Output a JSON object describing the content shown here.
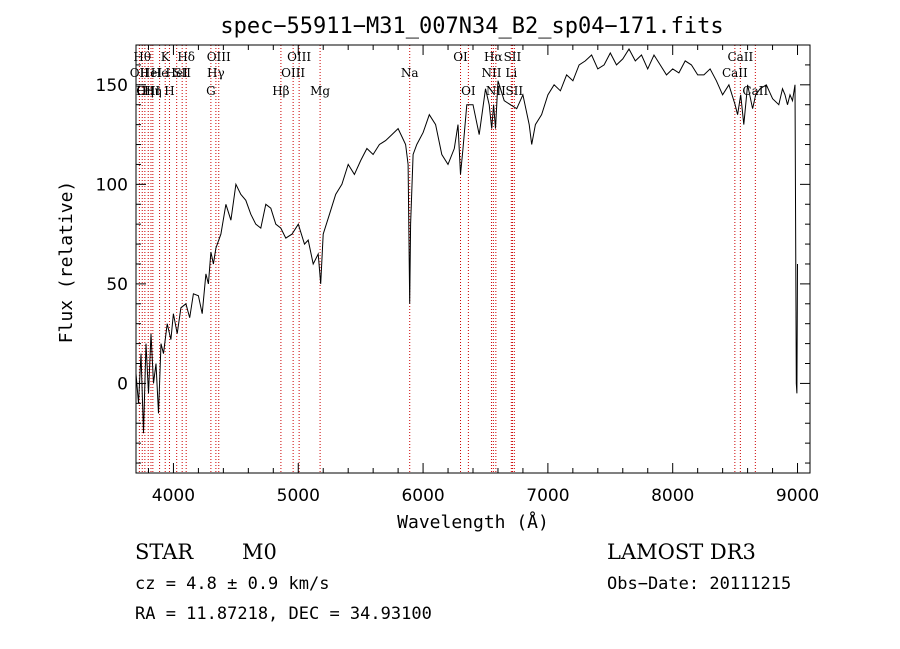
{
  "chart_data": {
    "type": "line",
    "title": "spec−55911−M31_007N34_B2_sp04−171.fits",
    "xlabel": "Wavelength (Å)",
    "ylabel": "Flux (relative)",
    "xlim": [
      3700,
      9100
    ],
    "ylim": [
      -45,
      170
    ],
    "xticks": [
      4000,
      5000,
      6000,
      7000,
      8000,
      9000
    ],
    "yticks": [
      0,
      50,
      100,
      150
    ],
    "grid": false,
    "series": [
      {
        "x": [
          3700,
          3720,
          3740,
          3760,
          3780,
          3800,
          3820,
          3840,
          3860,
          3880,
          3900,
          3920,
          3950,
          3980,
          4000,
          4030,
          4060,
          4100,
          4130,
          4160,
          4200,
          4230,
          4260,
          4280,
          4300,
          4320,
          4340,
          4380,
          4420,
          4460,
          4500,
          4540,
          4580,
          4620,
          4660,
          4700,
          4740,
          4780,
          4820,
          4860,
          4900,
          4950,
          5000,
          5050,
          5080,
          5120,
          5160,
          5180,
          5200,
          5250,
          5300,
          5350,
          5400,
          5450,
          5500,
          5550,
          5600,
          5650,
          5700,
          5750,
          5800,
          5830,
          5860,
          5880,
          5893,
          5900,
          5920,
          5950,
          6000,
          6050,
          6100,
          6150,
          6200,
          6250,
          6280,
          6300,
          6320,
          6350,
          6400,
          6450,
          6500,
          6530,
          6550,
          6565,
          6580,
          6600,
          6650,
          6700,
          6750,
          6800,
          6850,
          6870,
          6900,
          6950,
          7000,
          7050,
          7100,
          7150,
          7200,
          7250,
          7300,
          7350,
          7400,
          7450,
          7500,
          7550,
          7600,
          7650,
          7700,
          7750,
          7800,
          7850,
          7900,
          7950,
          8000,
          8050,
          8100,
          8150,
          8200,
          8250,
          8300,
          8350,
          8400,
          8450,
          8500,
          8520,
          8545,
          8570,
          8600,
          8640,
          8665,
          8700,
          8750,
          8800,
          8850,
          8880,
          8900,
          8920,
          8940,
          8960,
          8980,
          8990,
          8995,
          9000
        ],
        "values": [
          5,
          -10,
          15,
          -25,
          20,
          -5,
          25,
          0,
          10,
          -15,
          20,
          15,
          30,
          22,
          35,
          25,
          38,
          40,
          33,
          45,
          44,
          35,
          55,
          50,
          66,
          60,
          68,
          75,
          90,
          82,
          100,
          95,
          92,
          85,
          80,
          78,
          90,
          88,
          80,
          78,
          73,
          75,
          80,
          70,
          72,
          60,
          65,
          50,
          75,
          85,
          95,
          100,
          110,
          105,
          112,
          118,
          115,
          120,
          122,
          125,
          128,
          124,
          120,
          110,
          40,
          80,
          115,
          120,
          126,
          135,
          130,
          115,
          110,
          118,
          130,
          105,
          118,
          140,
          140,
          125,
          148,
          140,
          128,
          140,
          128,
          152,
          142,
          140,
          138,
          145,
          130,
          120,
          130,
          135,
          145,
          150,
          147,
          155,
          152,
          160,
          162,
          165,
          158,
          160,
          166,
          160,
          163,
          168,
          162,
          165,
          158,
          165,
          160,
          155,
          158,
          156,
          162,
          160,
          155,
          155,
          158,
          152,
          145,
          150,
          140,
          135,
          145,
          130,
          150,
          138,
          145,
          148,
          150,
          143,
          140,
          148,
          145,
          140,
          145,
          142,
          150,
          0,
          -5,
          60
        ]
      }
    ],
    "line_markers": [
      {
        "w": 3727,
        "label": "OII",
        "row": 2
      },
      {
        "w": 3750,
        "label": "Hθ",
        "row": 1
      },
      {
        "w": 3771,
        "label": "Hη",
        "row": 3
      },
      {
        "w": 3798,
        "label": "OIII",
        "row": 3
      },
      {
        "w": 3820,
        "label": "HeI",
        "row": 2
      },
      {
        "w": 3835,
        "label": "Hη",
        "row": 3
      },
      {
        "w": 3889,
        "label": "He",
        "row": 2
      },
      {
        "w": 3934,
        "label": "K",
        "row": 1
      },
      {
        "w": 3968,
        "label": "H",
        "row": 3
      },
      {
        "w": 4026,
        "label": "HeI",
        "row": 2
      },
      {
        "w": 4070,
        "label": "SII",
        "row": 2
      },
      {
        "w": 4102,
        "label": "Hδ",
        "row": 1
      },
      {
        "w": 4300,
        "label": "G",
        "row": 3
      },
      {
        "w": 4340,
        "label": "Hγ",
        "row": 2
      },
      {
        "w": 4363,
        "label": "OIII",
        "row": 1
      },
      {
        "w": 4861,
        "label": "Hβ",
        "row": 3
      },
      {
        "w": 4959,
        "label": "OIII",
        "row": 2
      },
      {
        "w": 5007,
        "label": "OIII",
        "row": 1
      },
      {
        "w": 5175,
        "label": "Mg",
        "row": 3
      },
      {
        "w": 5893,
        "label": "Na",
        "row": 2
      },
      {
        "w": 6300,
        "label": "OI",
        "row": 1
      },
      {
        "w": 6363,
        "label": "OI",
        "row": 3
      },
      {
        "w": 6548,
        "label": "NII",
        "row": 2
      },
      {
        "w": 6563,
        "label": "Hα",
        "row": 1
      },
      {
        "w": 6583,
        "label": "NII",
        "row": 3
      },
      {
        "w": 6707,
        "label": "Li",
        "row": 2
      },
      {
        "w": 6716,
        "label": "SII",
        "row": 1
      },
      {
        "w": 6731,
        "label": "SII",
        "row": 3
      },
      {
        "w": 8498,
        "label": "CaII",
        "row": 2
      },
      {
        "w": 8542,
        "label": "CaII",
        "row": 1
      },
      {
        "w": 8662,
        "label": "CaII",
        "row": 3
      }
    ]
  },
  "info": {
    "object_type": "STAR",
    "subclass": "M0",
    "survey": "LAMOST DR3",
    "cz": "cz = 4.8 ± 0.9 km/s",
    "obs_date": "Obs−Date: 20111215",
    "coords": "RA =  11.87218, DEC =  34.93100"
  }
}
